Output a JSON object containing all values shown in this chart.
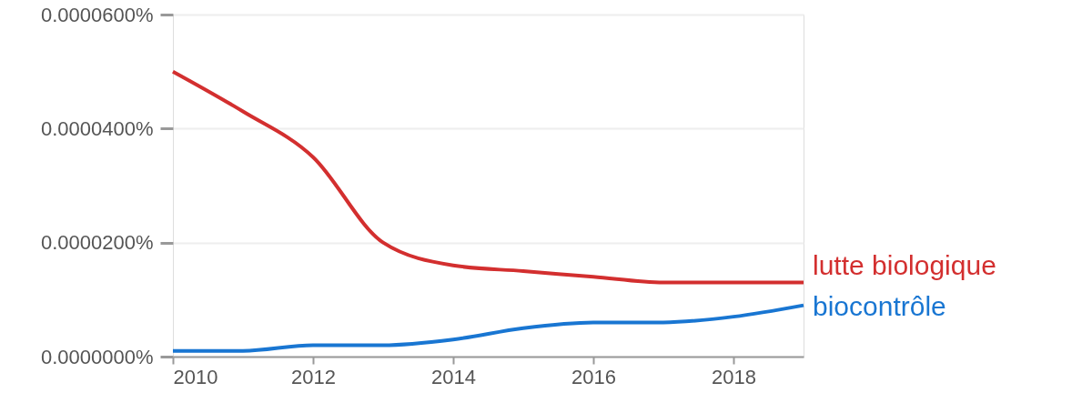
{
  "chart_data": {
    "type": "line",
    "x": [
      2010,
      2011,
      2012,
      2013,
      2014,
      2015,
      2016,
      2017,
      2018,
      2019
    ],
    "series": [
      {
        "name": "lutte biologique",
        "color": "#d32f2f",
        "values": [
          5e-05,
          4.3e-05,
          3.5e-05,
          2e-05,
          1.6e-05,
          1.5e-05,
          1.4e-05,
          1.3e-05,
          1.3e-05,
          1.3e-05
        ]
      },
      {
        "name": "biocontrôle",
        "color": "#1976d2",
        "values": [
          1e-06,
          1e-06,
          2e-06,
          2e-06,
          3e-06,
          5e-06,
          6e-06,
          6e-06,
          7e-06,
          9e-06
        ]
      }
    ],
    "xlim": [
      2010,
      2019
    ],
    "xticks": [
      2010,
      2012,
      2014,
      2016,
      2018
    ],
    "ylim": [
      0,
      6e-05
    ],
    "yticks": [
      {
        "value": 0,
        "label": "0.0000000%"
      },
      {
        "value": 2e-05,
        "label": "0.0000200%"
      },
      {
        "value": 4e-05,
        "label": "0.0000400%"
      },
      {
        "value": 6e-05,
        "label": "0.0000600%"
      }
    ],
    "grid": "y",
    "marker": "none",
    "line_style": "solid"
  }
}
